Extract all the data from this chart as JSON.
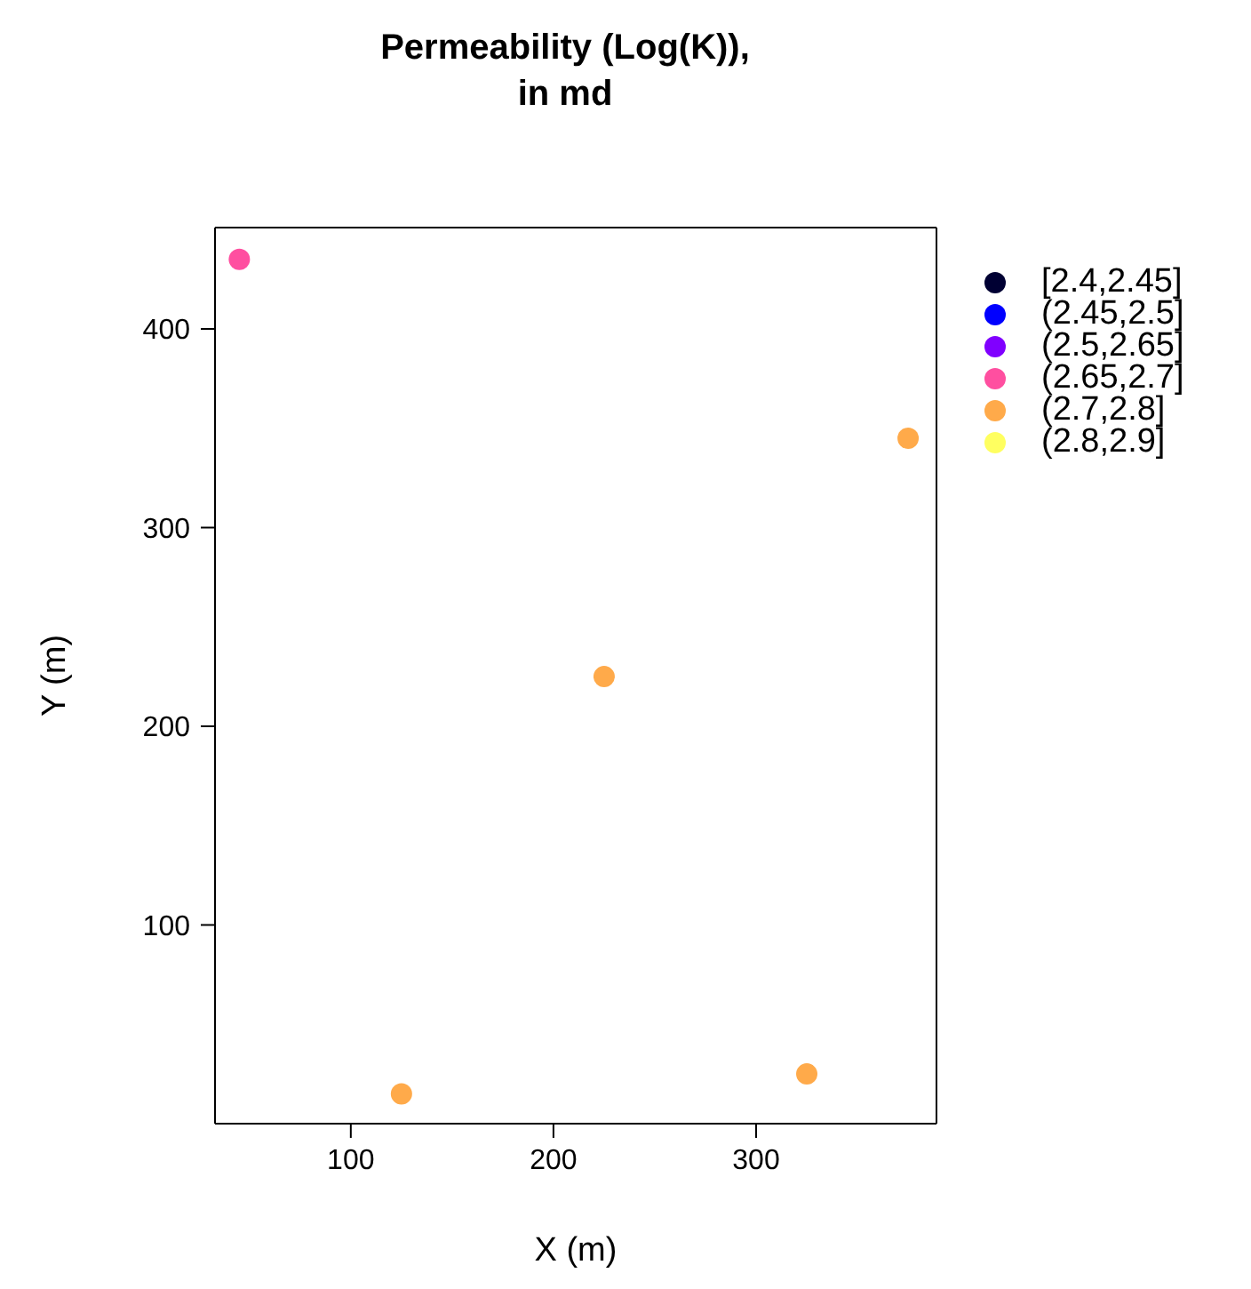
{
  "chart_data": {
    "type": "scatter",
    "title": "Permeability (Log(K)),\nin md",
    "xlabel": "X (m)",
    "ylabel": "Y (m)",
    "xlim": [
      33,
      389
    ],
    "ylim": [
      0,
      451
    ],
    "xticks": [
      100,
      200,
      300
    ],
    "yticks": [
      100,
      200,
      300,
      400
    ],
    "grid": false,
    "legend": "right",
    "marker": "circle",
    "series": [
      {
        "name": "[2.4,2.45]",
        "color": "#000033"
      },
      {
        "name": "(2.45,2.5]",
        "color": "#0000ff"
      },
      {
        "name": "(2.5,2.65]",
        "color": "#8000ff"
      },
      {
        "name": "(2.65,2.7]",
        "color": "#ff4fa0",
        "x": [
          45
        ],
        "values": [
          435
        ]
      },
      {
        "name": "(2.7,2.8]",
        "color": "#ffaa4a",
        "x": [
          375,
          225,
          125,
          325
        ],
        "values": [
          345,
          225,
          15,
          25
        ]
      },
      {
        "name": "(2.8,2.9]",
        "color": "#ffff60"
      }
    ]
  }
}
